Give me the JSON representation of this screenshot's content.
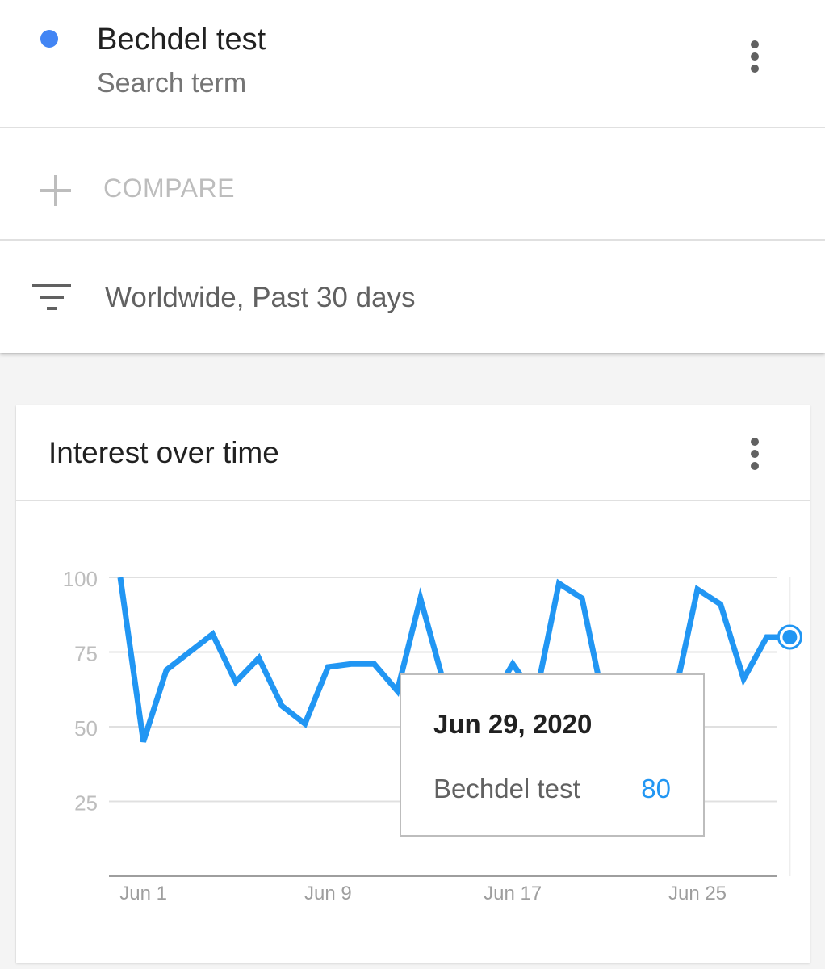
{
  "search": {
    "term": "Bechdel test",
    "subtitle": "Search term",
    "color": "#4285f4"
  },
  "compare": {
    "label": "COMPARE"
  },
  "filter": {
    "label": "Worldwide, Past 30 days"
  },
  "card": {
    "title": "Interest over time"
  },
  "tooltip": {
    "date": "Jun 29, 2020",
    "series_name": "Bechdel test",
    "value": "80"
  },
  "chart_data": {
    "type": "line",
    "x": [
      "May 31",
      "Jun 1",
      "Jun 2",
      "Jun 3",
      "Jun 4",
      "Jun 5",
      "Jun 6",
      "Jun 7",
      "Jun 8",
      "Jun 9",
      "Jun 10",
      "Jun 11",
      "Jun 12",
      "Jun 13",
      "Jun 14",
      "Jun 15",
      "Jun 16",
      "Jun 17",
      "Jun 18",
      "Jun 19",
      "Jun 20",
      "Jun 21",
      "Jun 22",
      "Jun 23",
      "Jun 24",
      "Jun 25",
      "Jun 26",
      "Jun 27",
      "Jun 28",
      "Jun 29"
    ],
    "series": [
      {
        "name": "Bechdel test",
        "color": "#2196f3",
        "values": [
          100,
          45,
          69,
          75,
          81,
          65,
          73,
          57,
          51,
          70,
          71,
          71,
          62,
          93,
          65,
          63,
          58,
          71,
          60,
          98,
          93,
          56,
          59,
          46,
          60,
          96,
          91,
          66,
          80,
          80
        ]
      }
    ],
    "x_ticks": [
      "Jun 1",
      "Jun 9",
      "Jun 17",
      "Jun 25"
    ],
    "y_ticks": [
      "100",
      "75",
      "50",
      "25"
    ],
    "ylim": [
      0,
      100
    ],
    "grid": true,
    "highlighted_index": 29
  }
}
